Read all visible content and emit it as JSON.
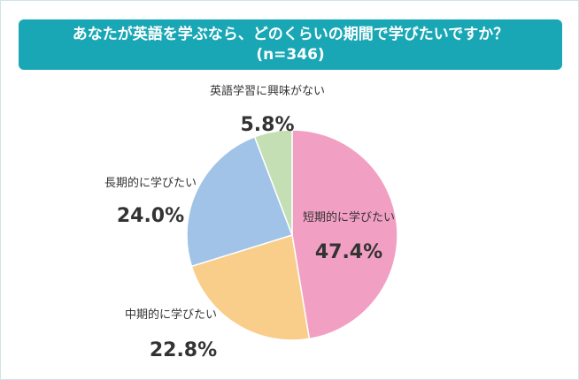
{
  "title": {
    "line1": "あなたが英語を学ぶなら、どのくらいの期間で学びたいですか？",
    "line2": "(n=346)"
  },
  "chart_data": {
    "type": "pie",
    "title": "あなたが英語を学ぶなら、どのくらいの期間で学びたいですか？ (n=346)",
    "slices": [
      {
        "label": "短期的に学びたい",
        "value": 47.4,
        "value_label": "47.4%",
        "color": "#f29fc4"
      },
      {
        "label": "中期的に学びたい",
        "value": 22.8,
        "value_label": "22.8%",
        "color": "#f9cd8a"
      },
      {
        "label": "長期的に学びたい",
        "value": 24.0,
        "value_label": "24.0%",
        "color": "#a0c3e7"
      },
      {
        "label": "英語学習に興味がない",
        "value": 5.8,
        "value_label": "5.8%",
        "color": "#c5dfb4"
      }
    ],
    "start": "12 o'clock",
    "direction": "clockwise"
  }
}
